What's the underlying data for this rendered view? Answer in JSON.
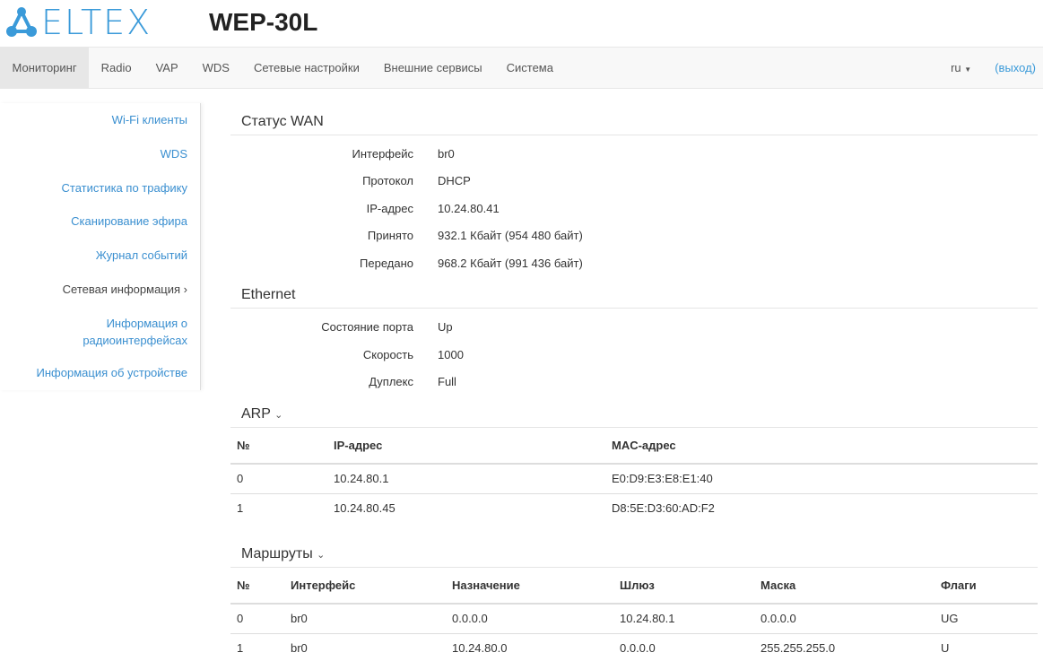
{
  "header": {
    "logo": "ELTEX",
    "model": "WEP-30L"
  },
  "nav": {
    "items": [
      "Мониторинг",
      "Radio",
      "VAP",
      "WDS",
      "Сетевые настройки",
      "Внешние сервисы",
      "Система"
    ],
    "lang": "ru",
    "logout": "(выход)"
  },
  "sidebar": {
    "items": [
      "Wi-Fi клиенты",
      "WDS",
      "Статистика по трафику",
      "Сканирование эфира",
      "Журнал событий",
      "Сетевая информация ›",
      "Информация о радиоинтерфейсах",
      "Информация об устройстве"
    ]
  },
  "wan": {
    "title": "Статус WAN",
    "rows": [
      {
        "label": "Интерфейс",
        "value": "br0"
      },
      {
        "label": "Протокол",
        "value": "DHCP"
      },
      {
        "label": "IP-адрес",
        "value": "10.24.80.41"
      },
      {
        "label": "Принято",
        "value": "932.1 Кбайт (954 480 байт)"
      },
      {
        "label": "Передано",
        "value": "968.2 Кбайт (991 436 байт)"
      }
    ]
  },
  "ethernet": {
    "title": "Ethernet",
    "rows": [
      {
        "label": "Состояние порта",
        "value": "Up"
      },
      {
        "label": "Скорость",
        "value": "1000"
      },
      {
        "label": "Дуплекс",
        "value": "Full"
      }
    ]
  },
  "arp": {
    "title": "ARP",
    "headers": [
      "№",
      "IP-адрес",
      "MAC-адрес"
    ],
    "rows": [
      [
        "0",
        "10.24.80.1",
        "E0:D9:E3:E8:E1:40"
      ],
      [
        "1",
        "10.24.80.45",
        "D8:5E:D3:60:AD:F2"
      ]
    ]
  },
  "routes": {
    "title": "Маршруты",
    "headers": [
      "№",
      "Интерфейс",
      "Назначение",
      "Шлюз",
      "Маска",
      "Флаги"
    ],
    "rows": [
      [
        "0",
        "br0",
        "0.0.0.0",
        "10.24.80.1",
        "0.0.0.0",
        "UG"
      ],
      [
        "1",
        "br0",
        "10.24.80.0",
        "0.0.0.0",
        "255.255.255.0",
        "U"
      ]
    ]
  },
  "colors": {
    "accent": "#3a9ad9"
  }
}
